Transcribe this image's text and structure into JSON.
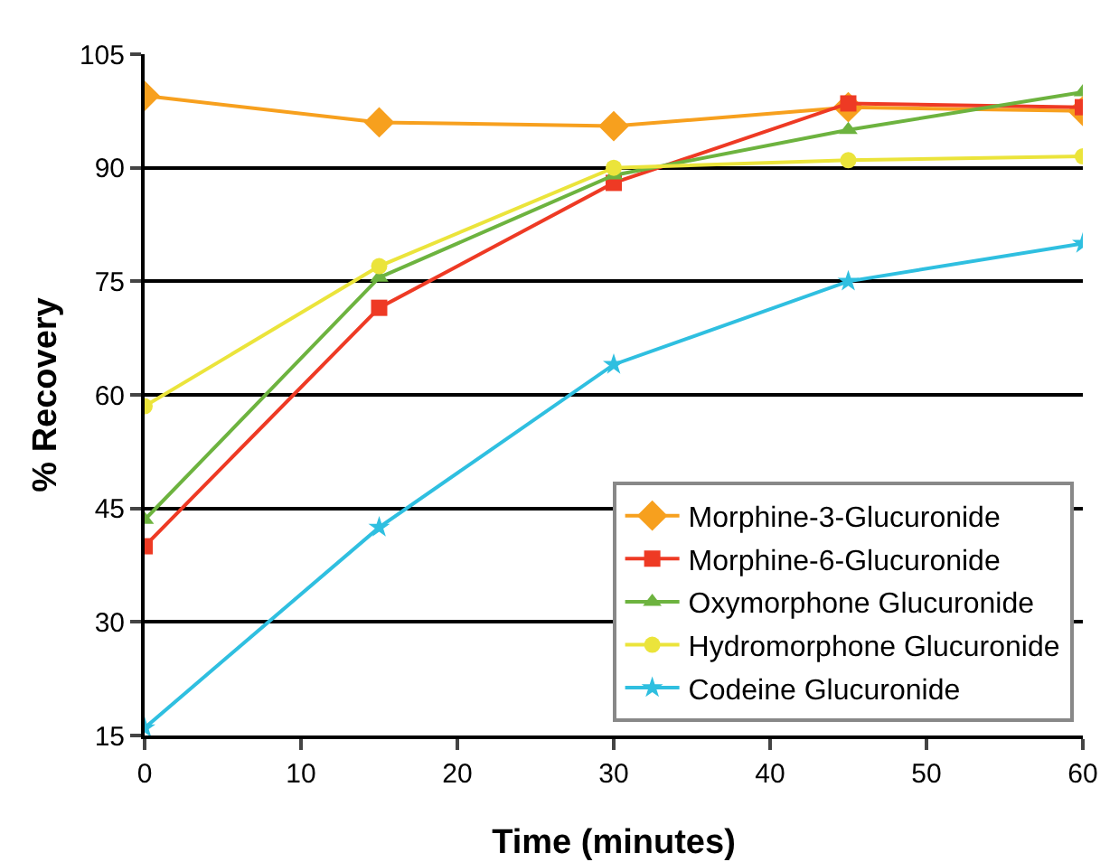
{
  "chart_data": {
    "type": "line",
    "xlabel": "Time (minutes)",
    "ylabel": "% Recovery",
    "x": [
      0,
      15,
      30,
      45,
      60
    ],
    "xlim": [
      0,
      60
    ],
    "xticks": [
      0,
      10,
      20,
      30,
      40,
      50,
      60
    ],
    "ylim": [
      15,
      105
    ],
    "yticks": [
      15,
      30,
      45,
      60,
      75,
      90,
      105
    ],
    "grid": "y",
    "legend": "bottom right",
    "series": [
      {
        "name": "Morphine-3-Glucuronide",
        "color": "#f7a01e",
        "marker": "diamond",
        "values": [
          99.5,
          96,
          95.5,
          98,
          97.5
        ]
      },
      {
        "name": "Morphine-6-Glucuronide",
        "color": "#ee3a24",
        "marker": "square",
        "values": [
          40,
          71.5,
          88,
          98.5,
          98
        ]
      },
      {
        "name": "Oxymorphone Glucuronide",
        "color": "#6db33f",
        "marker": "triangle",
        "values": [
          43.5,
          75.5,
          89,
          95,
          100
        ]
      },
      {
        "name": "Hydromorphone Glucuronide",
        "color": "#ebe43b",
        "marker": "circle",
        "values": [
          58.5,
          77,
          90,
          91,
          91.5
        ]
      },
      {
        "name": "Codeine Glucuronide",
        "color": "#2fbfe0",
        "marker": "star",
        "values": [
          16,
          42.5,
          64,
          75,
          80
        ]
      }
    ]
  }
}
